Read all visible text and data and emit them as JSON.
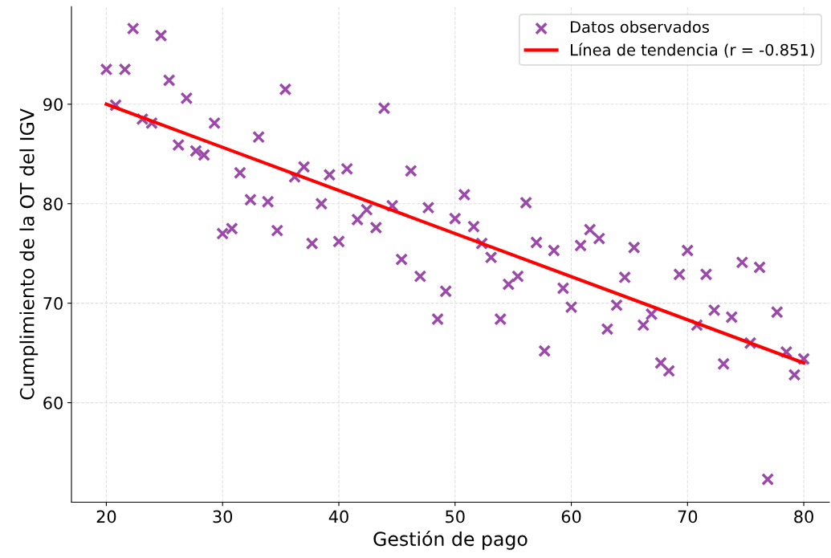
{
  "chart_data": {
    "type": "scatter",
    "xlabel": "Gestión de pago",
    "ylabel": "Cumplimiento de la OT del IGV",
    "xlim": [
      17,
      82.2
    ],
    "ylim": [
      50,
      99.8
    ],
    "xticks": [
      20,
      30,
      40,
      50,
      60,
      70,
      80
    ],
    "yticks": [
      60,
      70,
      80,
      90
    ],
    "grid": true,
    "legend": "top right",
    "series": [
      {
        "name": "Datos observados",
        "marker": "cross",
        "color": "#9b4aaa",
        "x": [
          20.0,
          20.8,
          21.6,
          22.3,
          23.1,
          23.9,
          24.7,
          25.4,
          26.2,
          26.9,
          27.7,
          28.4,
          29.3,
          30.0,
          30.8,
          31.5,
          32.4,
          33.1,
          33.9,
          34.7,
          35.4,
          36.2,
          37.0,
          37.7,
          38.5,
          39.2,
          40.0,
          40.7,
          41.6,
          42.4,
          43.2,
          43.9,
          44.6,
          45.4,
          46.2,
          47.0,
          47.7,
          48.5,
          49.2,
          50.0,
          50.8,
          51.6,
          52.3,
          53.1,
          53.9,
          54.6,
          55.4,
          56.1,
          57.0,
          57.7,
          58.5,
          59.3,
          60.0,
          60.8,
          61.6,
          62.4,
          63.1,
          63.9,
          64.6,
          65.4,
          66.2,
          66.9,
          67.7,
          68.4,
          69.3,
          70.0,
          70.8,
          71.6,
          72.3,
          73.1,
          73.8,
          74.7,
          75.4,
          76.2,
          76.9,
          77.7,
          78.5,
          79.2,
          80.0
        ],
        "values": [
          93.5,
          89.9,
          93.5,
          97.6,
          88.5,
          88.1,
          96.9,
          92.4,
          85.9,
          90.6,
          85.3,
          84.9,
          88.1,
          77.0,
          77.5,
          83.1,
          80.4,
          86.7,
          80.2,
          77.3,
          91.5,
          82.7,
          83.7,
          76.0,
          80.0,
          82.9,
          76.2,
          83.5,
          78.4,
          79.4,
          77.6,
          89.6,
          79.8,
          74.4,
          83.3,
          72.7,
          79.6,
          68.4,
          71.2,
          78.5,
          80.9,
          77.7,
          76.0,
          74.6,
          68.4,
          71.9,
          72.7,
          80.1,
          76.1,
          65.2,
          75.3,
          71.5,
          69.6,
          75.8,
          77.4,
          76.5,
          67.4,
          69.8,
          72.6,
          75.6,
          67.8,
          68.9,
          64.0,
          63.2,
          72.9,
          75.3,
          67.8,
          72.9,
          69.3,
          63.9,
          68.6,
          74.1,
          66.0,
          73.6,
          52.3,
          69.1,
          65.1,
          62.8,
          64.4
        ]
      },
      {
        "name": "Línea de tendencia (r = -0.851)",
        "type": "line",
        "line_style": "solid",
        "color": "#ff0000",
        "x": [
          20,
          80
        ],
        "values": [
          90.0,
          64.0
        ]
      }
    ]
  }
}
